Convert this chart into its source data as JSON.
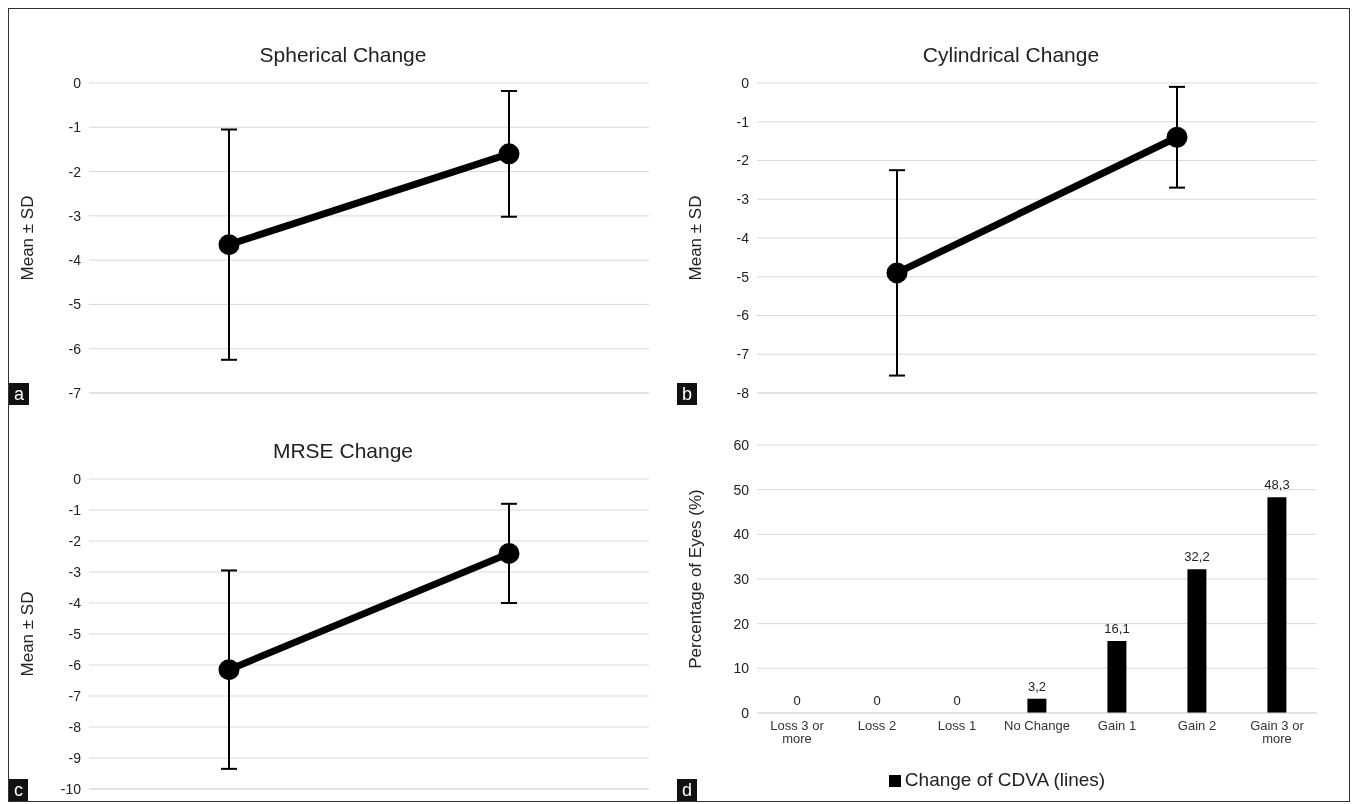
{
  "chart_data": [
    {
      "type": "line",
      "title": "Spherical Change",
      "ylabel": "Mean ± SD",
      "categories": [
        null,
        null
      ],
      "series": [
        {
          "color": "#000000",
          "values": [
            -3.65,
            -1.6
          ],
          "errors": [
            2.6,
            1.42
          ]
        }
      ],
      "ylim": [
        -7,
        0
      ],
      "yticks": [
        -7,
        -6,
        -5,
        -4,
        -3,
        -2,
        -1,
        0
      ],
      "grid": "y",
      "marker": "circle",
      "line_style": "solid",
      "tick_labels": "y",
      "legend": false,
      "annotations": [
        "a"
      ]
    },
    {
      "type": "line",
      "title": "Cylindrical Change",
      "ylabel": "Mean ± SD",
      "categories": [
        null,
        null
      ],
      "series": [
        {
          "color": "#000000",
          "values": [
            -4.9,
            -1.4
          ],
          "errors": [
            2.65,
            1.3
          ]
        }
      ],
      "ylim": [
        -8,
        0
      ],
      "yticks": [
        -8,
        -7,
        -6,
        -5,
        -4,
        -3,
        -2,
        -1,
        0
      ],
      "grid": "y",
      "marker": "circle",
      "line_style": "solid",
      "tick_labels": "y",
      "legend": false,
      "annotations": [
        "b"
      ]
    },
    {
      "type": "line",
      "title": "MRSE Change",
      "ylabel": "Mean ± SD",
      "categories": [
        null,
        null
      ],
      "series": [
        {
          "color": "#000000",
          "values": [
            -6.15,
            -2.4
          ],
          "errors": [
            3.2,
            1.6
          ]
        }
      ],
      "ylim": [
        -10,
        0
      ],
      "yticks": [
        -10,
        -9,
        -8,
        -7,
        -6,
        -5,
        -4,
        -3,
        -2,
        -1,
        0
      ],
      "grid": "y",
      "marker": "circle",
      "line_style": "solid",
      "tick_labels": "y",
      "legend": false,
      "annotations": [
        "c"
      ]
    },
    {
      "type": "bar",
      "ylabel": "Percentage of Eyes (%)",
      "categories": [
        "Loss 3 or more",
        "Loss 2",
        "Loss 1",
        "No Change",
        "Gain 1",
        "Gain 2",
        "Gain 3 or more"
      ],
      "series": [
        {
          "name": "Change of CDVA (lines)",
          "color": "#000000",
          "values": [
            0,
            0,
            0,
            3.2,
            16.1,
            32.2,
            48.3
          ],
          "value_labels": [
            "0",
            "0",
            "0",
            "3,2",
            "16,1",
            "32,2",
            "48,3"
          ]
        }
      ],
      "ylim": [
        0,
        60
      ],
      "yticks": [
        0,
        10,
        20,
        30,
        40,
        50,
        60
      ],
      "grid": "y",
      "legend": "bottom",
      "annotations": [
        "d"
      ]
    }
  ]
}
